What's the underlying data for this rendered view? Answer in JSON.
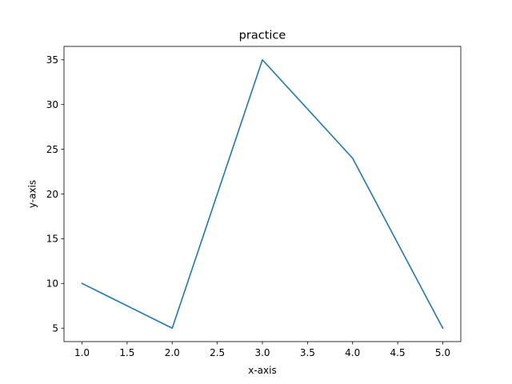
{
  "chart_data": {
    "type": "line",
    "title": "practice",
    "xlabel": "x-axis",
    "ylabel": "y-axis",
    "xlim": [
      0.8,
      5.2
    ],
    "ylim": [
      3.5,
      36.5
    ],
    "x": [
      1.0,
      2.0,
      3.0,
      4.0,
      5.0
    ],
    "series": [
      {
        "values": [
          10,
          5,
          35,
          24,
          5
        ],
        "color": "#1f77b4"
      }
    ],
    "x_ticks": [
      1.0,
      1.5,
      2.0,
      2.5,
      3.0,
      3.5,
      4.0,
      4.5,
      5.0
    ],
    "x_tick_labels": [
      "1.0",
      "1.5",
      "2.0",
      "2.5",
      "3.0",
      "3.5",
      "4.0",
      "4.5",
      "5.0"
    ],
    "y_ticks": [
      5,
      10,
      15,
      20,
      25,
      30,
      35
    ],
    "y_tick_labels": [
      "5",
      "10",
      "15",
      "20",
      "25",
      "30",
      "35"
    ],
    "grid": false,
    "legend": "none"
  }
}
